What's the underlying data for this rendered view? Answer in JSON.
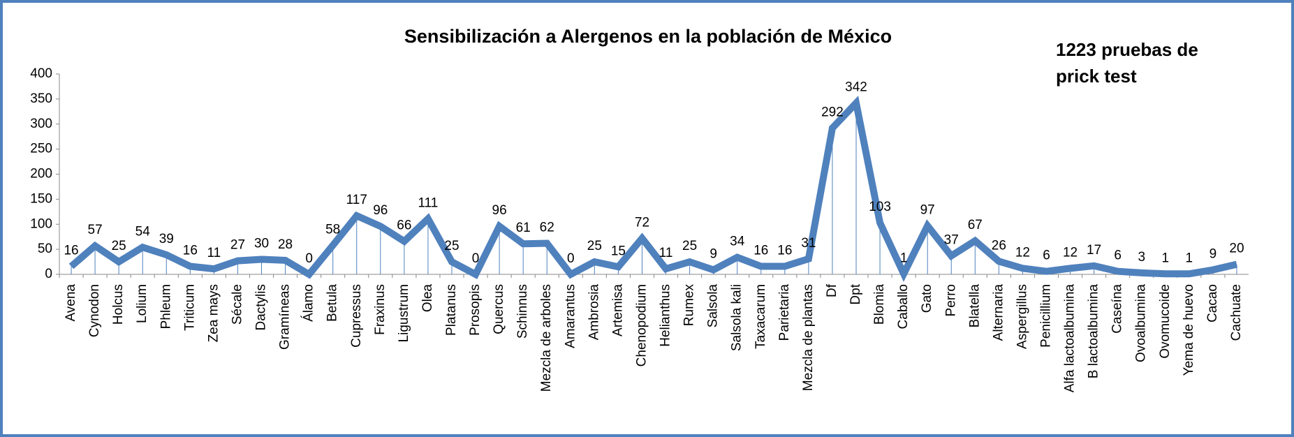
{
  "chart_data": {
    "type": "line",
    "title": "Sensibilización a Alergenos en la población de México",
    "annotation": "1223 pruebas de prick test",
    "categories": [
      "Avena",
      "Cynodon",
      "Holcus",
      "Lolium",
      "Phleum",
      "Triticum",
      "Zea mays",
      "Sécale",
      "Dactylis",
      "Gramíneas",
      "Álamo",
      "Betula",
      "Cupressus",
      "Fraxinus",
      "Ligustrum",
      "Olea",
      "Platanus",
      "Prosopis",
      "Quercus",
      "Schinnus",
      "Mezcla de arboles",
      "Amarantus",
      "Ambrosia",
      "Artemisa",
      "Chenopodium",
      "Helianthus",
      "Rumex",
      "Salsola",
      "Salsola kali",
      "Taxacarum",
      "Parietaria",
      "Mezcla de plantas",
      "Df",
      "Dpt",
      "Blomia",
      "Caballo",
      "Gato",
      "Perro",
      "Blatella",
      "Alternaria",
      "Aspergillus",
      "Penicillium",
      "Alfa lactoalbumina",
      "B lactoalbumina",
      "Caseína",
      "Ovoalbumina",
      "Ovomucoide",
      "Yema de huevo",
      "Cacao",
      "Cachuate"
    ],
    "values": [
      16,
      57,
      25,
      54,
      39,
      16,
      11,
      27,
      30,
      28,
      0,
      58,
      117,
      96,
      66,
      111,
      25,
      0,
      96,
      61,
      62,
      0,
      25,
      15,
      72,
      11,
      25,
      9,
      34,
      16,
      16,
      31,
      292,
      342,
      103,
      1,
      97,
      37,
      67,
      26,
      12,
      6,
      12,
      17,
      6,
      3,
      1,
      1,
      9,
      20
    ],
    "color": "#4f81bd",
    "ylim": [
      0,
      400
    ],
    "yticks": [
      0,
      50,
      100,
      150,
      200,
      250,
      300,
      350,
      400
    ],
    "drop_lines": true
  }
}
